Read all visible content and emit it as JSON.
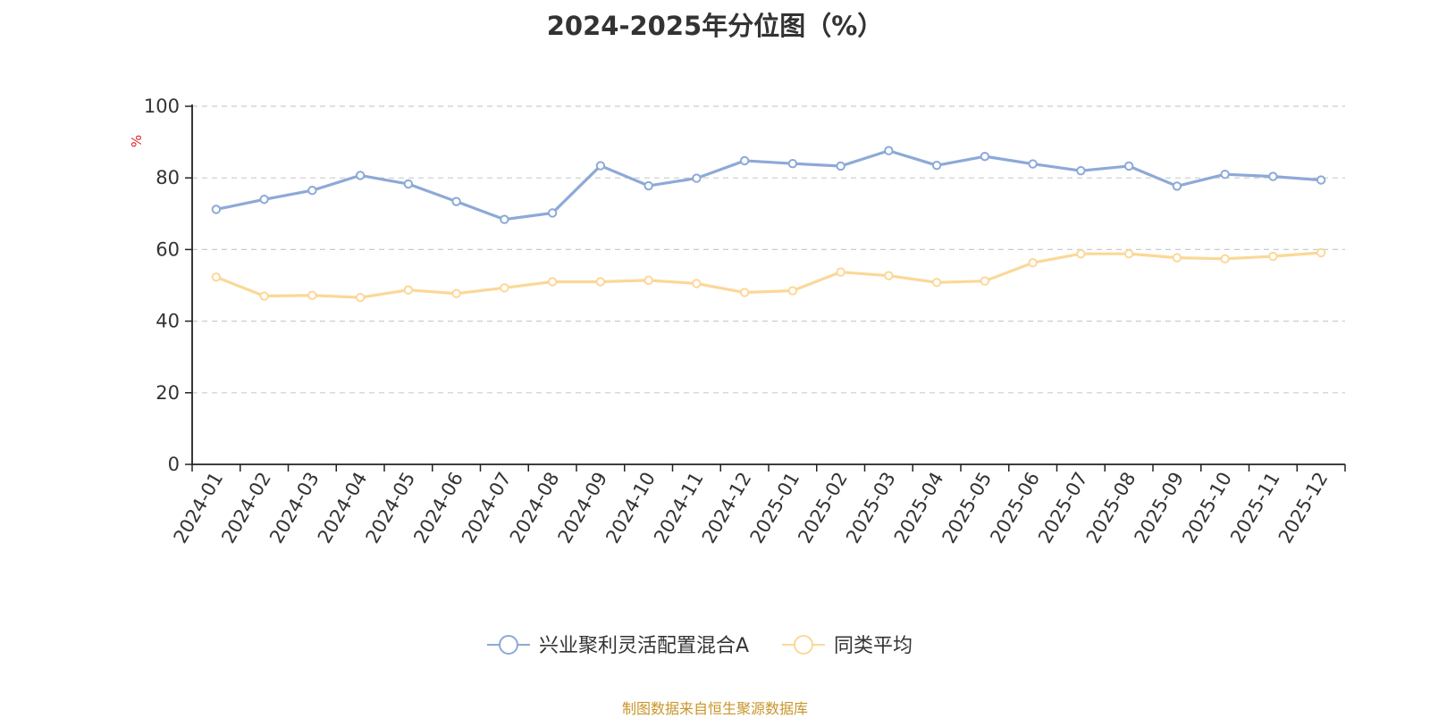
{
  "chart_data": {
    "type": "line",
    "title": "2024-2025年分位图（%）",
    "ylabel": "%",
    "xlabel": "",
    "ylim": [
      0,
      100
    ],
    "yticks": [
      0,
      20,
      40,
      60,
      80,
      100
    ],
    "grid": true,
    "legend_position": "bottom",
    "categories": [
      "2024-01",
      "2024-02",
      "2024-03",
      "2024-04",
      "2024-05",
      "2024-06",
      "2024-07",
      "2024-08",
      "2024-09",
      "2024-10",
      "2024-11",
      "2024-12",
      "2025-01",
      "2025-02",
      "2025-03",
      "2025-04",
      "2025-05",
      "2025-06",
      "2025-07",
      "2025-08",
      "2025-09",
      "2025-10",
      "2025-11",
      "2025-12"
    ],
    "series": [
      {
        "name": "兴业聚利灵活配置混合A",
        "color": "#8ca9d8",
        "values": [
          71.2,
          74.0,
          76.5,
          80.7,
          78.3,
          73.4,
          68.4,
          70.2,
          83.4,
          77.8,
          79.9,
          84.8,
          84.0,
          83.3,
          87.6,
          83.5,
          86.0,
          83.9,
          82.0,
          83.3,
          77.7,
          81.0,
          80.4,
          79.4
        ]
      },
      {
        "name": "同类平均",
        "color": "#fbd898",
        "values": [
          52.3,
          47.0,
          47.2,
          46.6,
          48.7,
          47.7,
          49.3,
          51.0,
          51.0,
          51.4,
          50.5,
          48.0,
          48.5,
          53.7,
          52.7,
          50.8,
          51.2,
          56.3,
          58.8,
          58.8,
          57.7,
          57.4,
          58.1,
          59.1
        ]
      }
    ],
    "source_note": "制图数据来自恒生聚源数据库"
  },
  "colors": {
    "axis": "#222222",
    "grid": "#cccccc",
    "unit_label": "#dd2222",
    "source_text": "#c9952b"
  }
}
